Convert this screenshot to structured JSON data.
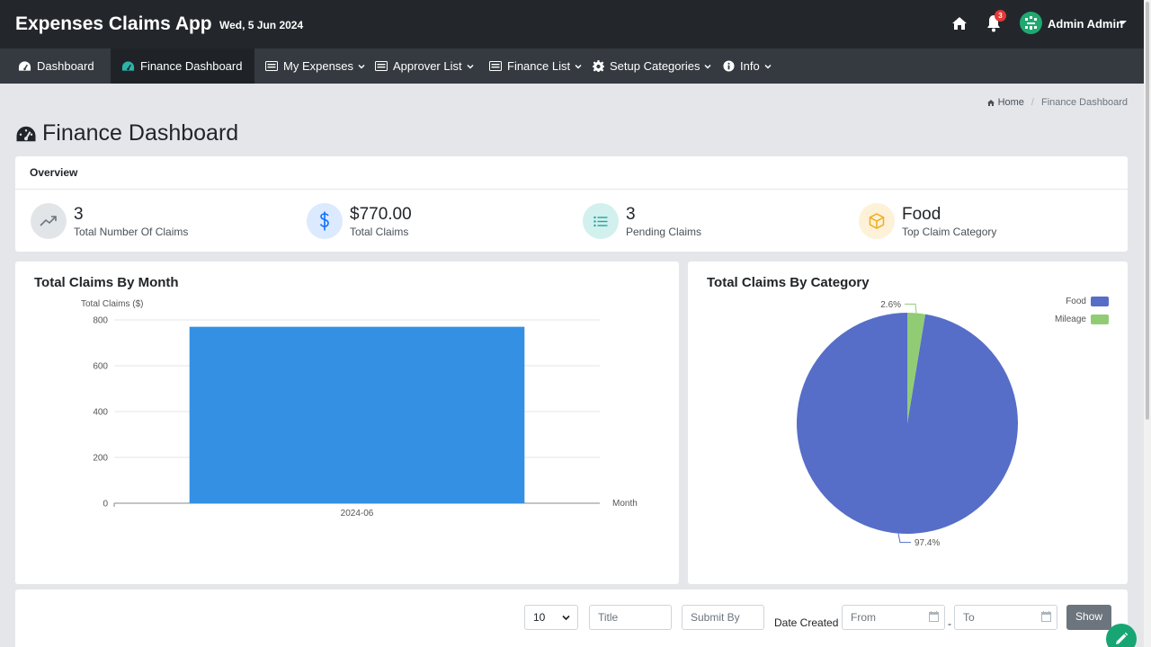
{
  "app": {
    "title": "Expenses Claims App",
    "date": "Wed, 5 Jun 2024"
  },
  "topbar": {
    "notification_count": "3",
    "user_name": "Admin Admin"
  },
  "nav": {
    "items": [
      {
        "label": "Dashboard",
        "icon": "dashboard-icon",
        "active": false
      },
      {
        "label": "Finance Dashboard",
        "icon": "dashboard-icon",
        "active": true
      },
      {
        "label": "My Expenses",
        "icon": "list-icon",
        "dropdown": true
      },
      {
        "label": "Approver List",
        "icon": "list-icon",
        "dropdown": true
      },
      {
        "label": "Finance List",
        "icon": "list-icon",
        "dropdown": true
      },
      {
        "label": "Setup Categories",
        "icon": "gear-icon",
        "dropdown": true
      },
      {
        "label": "Info",
        "icon": "info-icon",
        "dropdown": true
      }
    ]
  },
  "breadcrumb": {
    "home": "Home",
    "current": "Finance Dashboard"
  },
  "page": {
    "title": "Finance Dashboard"
  },
  "overview": {
    "heading": "Overview",
    "stats": [
      {
        "value": "3",
        "label": "Total Number Of Claims",
        "icon": "trend-up-icon",
        "color": "#6c757d"
      },
      {
        "value": "$770.00",
        "label": "Total Claims",
        "icon": "dollar-icon",
        "color": "#0d6efd"
      },
      {
        "value": "3",
        "label": "Pending Claims",
        "icon": "list-icon",
        "color": "#20a5a0"
      },
      {
        "value": "Food",
        "label": "Top Claim Category",
        "icon": "box-icon",
        "color": "#f0ad1e"
      }
    ]
  },
  "charts": {
    "month_title": "Total Claims By Month",
    "category_title": "Total Claims By Category"
  },
  "chart_data": [
    {
      "type": "bar",
      "title": "Total Claims By Month",
      "ylabel": "Total Claims ($)",
      "xlabel": "Month",
      "categories": [
        "2024-06"
      ],
      "values": [
        770
      ],
      "ylim": [
        0,
        800
      ],
      "yticks": [
        0,
        200,
        400,
        600,
        800
      ],
      "grid": true,
      "color": "#3490e3"
    },
    {
      "type": "pie",
      "title": "Total Claims By Category",
      "labels": [
        "Food",
        "Mileage"
      ],
      "values": [
        97.4,
        2.6
      ],
      "value_labels": [
        "97.4%",
        "2.6%"
      ],
      "colors": [
        "#566ec7",
        "#91cc75"
      ],
      "legend": "top-right"
    }
  ],
  "filters": {
    "page_size": "10",
    "title_placeholder": "Title",
    "submit_by_placeholder": "Submit By",
    "date_created_label": "Date Created",
    "from_placeholder": "From",
    "dash": "-",
    "to_placeholder": "To",
    "show_label": "Show"
  }
}
